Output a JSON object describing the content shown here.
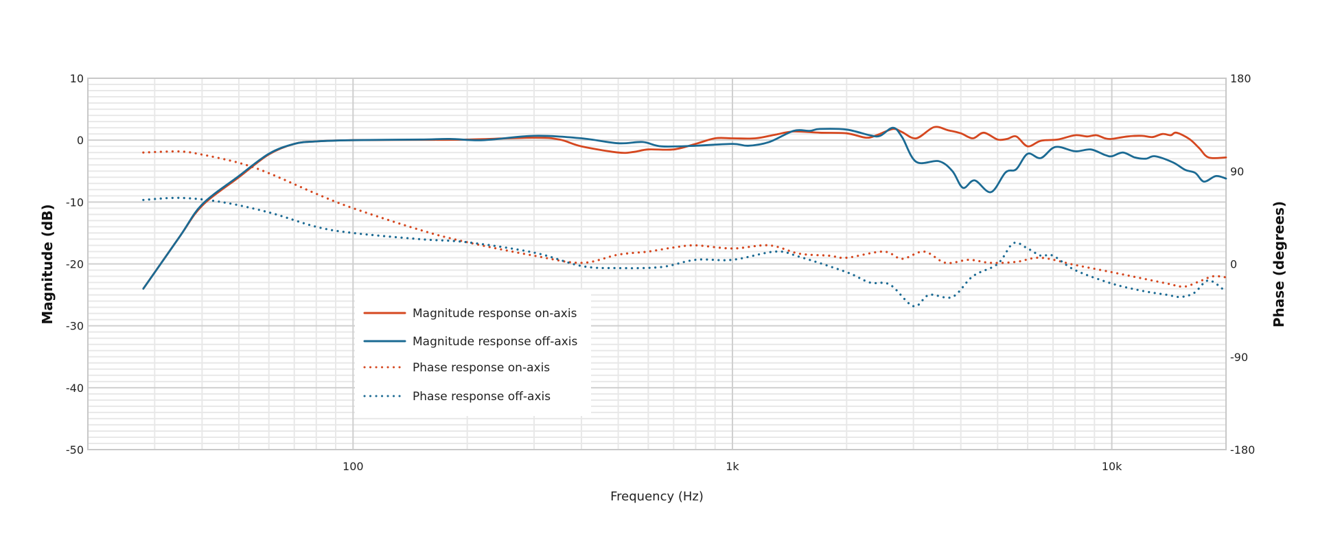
{
  "chart_data": {
    "type": "line",
    "title": "",
    "xlabel": "Frequency (Hz)",
    "ylabel": "Magnitude (dB)",
    "y2label": "Phase (degrees)",
    "xscale": "log",
    "xlim": [
      20,
      20000
    ],
    "ylim": [
      -50,
      10
    ],
    "y2lim": [
      -180,
      180
    ],
    "grid": true,
    "legend_position": "inside-lower-left-center",
    "x_ticks": [
      {
        "value": 100,
        "label": "100"
      },
      {
        "value": 1000,
        "label": "1k"
      },
      {
        "value": 10000,
        "label": "10k"
      }
    ],
    "y_ticks": [
      10,
      0,
      -10,
      -20,
      -30,
      -40,
      -50
    ],
    "y2_ticks": [
      180,
      90,
      0,
      -90,
      -180
    ],
    "colors": {
      "on_axis": "#D5471F",
      "off_axis": "#1B6A93",
      "grid_major": "#CFCFCF",
      "grid_minor": "#E8E8E8"
    },
    "series": [
      {
        "name": "Magnitude response on-axis",
        "axis": "left",
        "style": "solid",
        "color": "#D5471F",
        "points": [
          [
            28,
            -24
          ],
          [
            35,
            -15.5
          ],
          [
            40,
            -10.6
          ],
          [
            50,
            -6
          ],
          [
            60,
            -2.3
          ],
          [
            70,
            -0.6
          ],
          [
            80,
            -0.2
          ],
          [
            100,
            0
          ],
          [
            150,
            0.05
          ],
          [
            200,
            0.1
          ],
          [
            300,
            0.4
          ],
          [
            350,
            0.1
          ],
          [
            400,
            -1
          ],
          [
            500,
            -2
          ],
          [
            550,
            -1.9
          ],
          [
            600,
            -1.5
          ],
          [
            700,
            -1.5
          ],
          [
            800,
            -0.6
          ],
          [
            900,
            0.3
          ],
          [
            1000,
            0.3
          ],
          [
            1150,
            0.3
          ],
          [
            1300,
            0.9
          ],
          [
            1450,
            1.4
          ],
          [
            1700,
            1.2
          ],
          [
            2000,
            1.1
          ],
          [
            2250,
            0.4
          ],
          [
            2400,
            0.8
          ],
          [
            2650,
            1.8
          ],
          [
            2800,
            1.3
          ],
          [
            3050,
            0.3
          ],
          [
            3400,
            2.1
          ],
          [
            3700,
            1.6
          ],
          [
            4000,
            1.1
          ],
          [
            4300,
            0.3
          ],
          [
            4600,
            1.2
          ],
          [
            5000,
            0.1
          ],
          [
            5300,
            0.2
          ],
          [
            5600,
            0.6
          ],
          [
            6000,
            -1
          ],
          [
            6500,
            -0.1
          ],
          [
            7200,
            0.1
          ],
          [
            8000,
            0.8
          ],
          [
            8600,
            0.6
          ],
          [
            9100,
            0.8
          ],
          [
            9600,
            0.3
          ],
          [
            10000,
            0.2
          ],
          [
            11000,
            0.6
          ],
          [
            12000,
            0.7
          ],
          [
            12800,
            0.5
          ],
          [
            13600,
            1.0
          ],
          [
            14300,
            0.8
          ],
          [
            14800,
            1.2
          ],
          [
            16000,
            0.2
          ],
          [
            17000,
            -1.3
          ],
          [
            18000,
            -2.8
          ],
          [
            20000,
            -2.8
          ]
        ]
      },
      {
        "name": "Magnitude response off-axis",
        "axis": "left",
        "style": "solid",
        "color": "#1B6A93",
        "points": [
          [
            28,
            -24
          ],
          [
            35,
            -15.5
          ],
          [
            40,
            -10.4
          ],
          [
            50,
            -5.8
          ],
          [
            60,
            -2.2
          ],
          [
            70,
            -0.6
          ],
          [
            80,
            -0.2
          ],
          [
            100,
            0
          ],
          [
            150,
            0.1
          ],
          [
            180,
            0.2
          ],
          [
            220,
            0
          ],
          [
            300,
            0.7
          ],
          [
            400,
            0.3
          ],
          [
            500,
            -0.5
          ],
          [
            580,
            -0.3
          ],
          [
            650,
            -1
          ],
          [
            800,
            -0.9
          ],
          [
            1000,
            -0.6
          ],
          [
            1100,
            -0.9
          ],
          [
            1250,
            -0.3
          ],
          [
            1450,
            1.5
          ],
          [
            1600,
            1.5
          ],
          [
            1700,
            1.8
          ],
          [
            2000,
            1.7
          ],
          [
            2300,
            0.8
          ],
          [
            2450,
            0.7
          ],
          [
            2650,
            2.0
          ],
          [
            2800,
            0.5
          ],
          [
            3050,
            -3.5
          ],
          [
            3500,
            -3.4
          ],
          [
            3800,
            -5.0
          ],
          [
            4050,
            -7.7
          ],
          [
            4350,
            -6.5
          ],
          [
            4800,
            -8.4
          ],
          [
            5250,
            -5.2
          ],
          [
            5600,
            -4.7
          ],
          [
            6000,
            -2.2
          ],
          [
            6500,
            -2.9
          ],
          [
            7100,
            -1.1
          ],
          [
            8000,
            -1.8
          ],
          [
            8800,
            -1.5
          ],
          [
            9600,
            -2.4
          ],
          [
            10000,
            -2.6
          ],
          [
            10700,
            -2.0
          ],
          [
            11500,
            -2.8
          ],
          [
            12300,
            -3.0
          ],
          [
            13000,
            -2.6
          ],
          [
            14500,
            -3.6
          ],
          [
            15600,
            -4.8
          ],
          [
            16600,
            -5.3
          ],
          [
            17500,
            -6.7
          ],
          [
            18800,
            -5.8
          ],
          [
            20000,
            -6.2
          ]
        ]
      },
      {
        "name": "Phase response on-axis",
        "axis": "right",
        "style": "dotted",
        "color": "#D5471F",
        "points": [
          [
            28,
            108
          ],
          [
            35,
            109
          ],
          [
            40,
            106
          ],
          [
            50,
            98
          ],
          [
            60,
            88
          ],
          [
            80,
            68
          ],
          [
            100,
            54
          ],
          [
            150,
            33
          ],
          [
            200,
            21
          ],
          [
            300,
            8
          ],
          [
            400,
            1
          ],
          [
            500,
            9
          ],
          [
            600,
            12
          ],
          [
            700,
            16
          ],
          [
            800,
            18
          ],
          [
            1000,
            15
          ],
          [
            1250,
            18
          ],
          [
            1500,
            10
          ],
          [
            1800,
            8
          ],
          [
            2000,
            6
          ],
          [
            2500,
            12
          ],
          [
            2800,
            5
          ],
          [
            3200,
            12
          ],
          [
            3650,
            1
          ],
          [
            4200,
            4
          ],
          [
            4800,
            1
          ],
          [
            5600,
            2
          ],
          [
            6500,
            6
          ],
          [
            8000,
            -1
          ],
          [
            10000,
            -8
          ],
          [
            12000,
            -14
          ],
          [
            14000,
            -19
          ],
          [
            15500,
            -22
          ],
          [
            17000,
            -17
          ],
          [
            18500,
            -12
          ],
          [
            20000,
            -13
          ]
        ]
      },
      {
        "name": "Phase response off-axis",
        "axis": "right",
        "style": "dotted",
        "color": "#1B6A93",
        "points": [
          [
            28,
            62
          ],
          [
            35,
            64
          ],
          [
            45,
            60
          ],
          [
            60,
            50
          ],
          [
            80,
            36
          ],
          [
            100,
            30
          ],
          [
            150,
            24
          ],
          [
            200,
            21
          ],
          [
            300,
            11
          ],
          [
            400,
            -2
          ],
          [
            500,
            -4
          ],
          [
            650,
            -3
          ],
          [
            800,
            4
          ],
          [
            1000,
            4
          ],
          [
            1300,
            12
          ],
          [
            1500,
            7
          ],
          [
            2000,
            -8
          ],
          [
            2300,
            -18
          ],
          [
            2600,
            -20
          ],
          [
            3000,
            -41
          ],
          [
            3300,
            -30
          ],
          [
            3800,
            -32
          ],
          [
            4300,
            -12
          ],
          [
            5000,
            0
          ],
          [
            5500,
            20
          ],
          [
            6000,
            15
          ],
          [
            6500,
            8
          ],
          [
            7000,
            8
          ],
          [
            8000,
            -6
          ],
          [
            10000,
            -19
          ],
          [
            12000,
            -26
          ],
          [
            14000,
            -30
          ],
          [
            15200,
            -32
          ],
          [
            16500,
            -28
          ],
          [
            18000,
            -16
          ],
          [
            20000,
            -27
          ]
        ]
      }
    ]
  },
  "legend": {
    "items": [
      {
        "label": "Magnitude response on-axis",
        "style": "solid",
        "color": "#D5471F"
      },
      {
        "label": "Magnitude response off-axis",
        "style": "solid",
        "color": "#1B6A93"
      },
      {
        "label": "Phase response on-axis",
        "style": "dotted",
        "color": "#D5471F"
      },
      {
        "label": "Phase response off-axis",
        "style": "dotted",
        "color": "#1B6A93"
      }
    ]
  },
  "axes": {
    "x_title": "Frequency (Hz)",
    "y_left_title": "Magnitude (dB)",
    "y_right_title": "Phase (degrees)",
    "x_tick_labels": [
      "100",
      "1k",
      "10k"
    ],
    "y_left_tick_labels": [
      "10",
      "0",
      "-10",
      "-20",
      "-30",
      "-40",
      "-50"
    ],
    "y_right_tick_labels": [
      "180",
      "90",
      "0",
      "-90",
      "-180"
    ]
  }
}
